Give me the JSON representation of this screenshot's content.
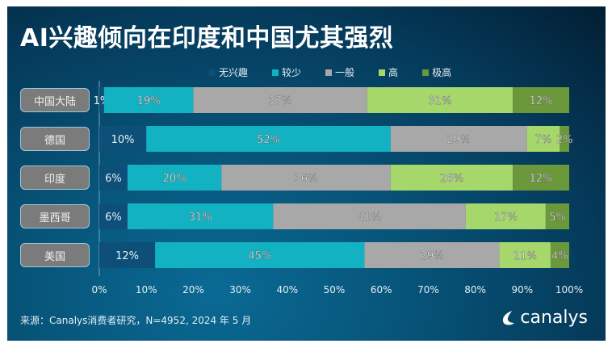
{
  "chart_data": {
    "type": "bar",
    "orientation": "horizontal",
    "stacked": true,
    "title": "AI兴趣倾向在印度和中国尤其强烈",
    "categories": [
      "中国大陆",
      "德国",
      "印度",
      "墨西哥",
      "美国"
    ],
    "series": [
      {
        "name": "无兴趣",
        "color": "#0d4f78",
        "values": [
          1,
          10,
          6,
          6,
          12
        ]
      },
      {
        "name": "较少",
        "color": "#12b2c3",
        "values": [
          19,
          52,
          20,
          31,
          45
        ]
      },
      {
        "name": "一般",
        "color": "#a8a8a8",
        "values": [
          37,
          29,
          36,
          41,
          29
        ]
      },
      {
        "name": "高",
        "color": "#a5d76a",
        "values": [
          31,
          7,
          26,
          17,
          11
        ]
      },
      {
        "name": "极高",
        "color": "#6b983a",
        "values": [
          12,
          2,
          12,
          5,
          4
        ]
      }
    ],
    "xlim": [
      0,
      100
    ],
    "x_ticks": [
      "0%",
      "10%",
      "20%",
      "30%",
      "40%",
      "50%",
      "60%",
      "70%",
      "80%",
      "90%",
      "100%"
    ],
    "value_suffix": "%",
    "legend": "top",
    "grid": false
  },
  "footer": {
    "source": "来源：Canalys消费者研究，N=4952, 2024 年 5 月",
    "logo_text": "canalys"
  }
}
